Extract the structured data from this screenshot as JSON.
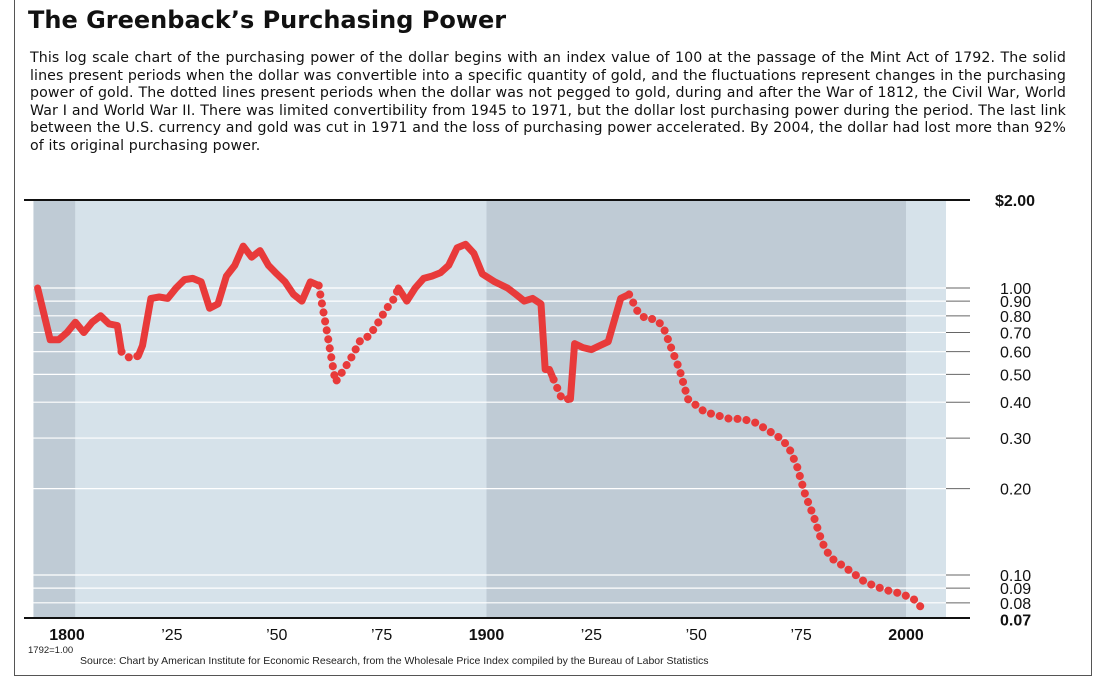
{
  "title": "The Greenback’s Purchasing Power",
  "description": "This log scale chart of the purchasing power of the dollar begins with an index value of 100 at the passage of the Mint Act of 1792. The solid lines present periods when the dollar was convertible into a specific quantity of gold, and the fluctuations represent changes in the purchasing power of gold. The dotted lines present periods when the dollar was not pegged to gold, during and after the War of 1812, the Civil War, World War I and World War II. There was limited convertibility from 1945 to 1971, but the dollar lost purchasing power during the period. The last link between the U.S. currency and gold was cut in 1971 and the loss of purchasing power accelerated. By 2004, the dollar had lost more than 92% of its original purchasing power.",
  "base_note": "1792=1.00",
  "source": "Source: Chart by American Institute for Economic Research, from the Wholesale Price Index compiled by the Bureau of Labor Statistics",
  "colors": {
    "line": "#e83a3a",
    "panel_light": "#d6e2ea",
    "panel_dark": "#bfcbd5",
    "gridline": "#ffffff"
  },
  "chart_data": {
    "type": "line",
    "y_scale": "log",
    "ylim": [
      0.07,
      2.0
    ],
    "xlim": [
      1792,
      2010
    ],
    "y_ticks": [
      {
        "value": 2.0,
        "label": "$2.00",
        "bold": true
      },
      {
        "value": 1.0,
        "label": "1.00"
      },
      {
        "value": 0.9,
        "label": "0.90"
      },
      {
        "value": 0.8,
        "label": "0.80"
      },
      {
        "value": 0.7,
        "label": "0.70"
      },
      {
        "value": 0.6,
        "label": "0.60"
      },
      {
        "value": 0.5,
        "label": "0.50"
      },
      {
        "value": 0.4,
        "label": "0.40"
      },
      {
        "value": 0.3,
        "label": "0.30"
      },
      {
        "value": 0.2,
        "label": "0.20"
      },
      {
        "value": 0.1,
        "label": "0.10"
      },
      {
        "value": 0.09,
        "label": "0.09"
      },
      {
        "value": 0.08,
        "label": "0.08"
      },
      {
        "value": 0.07,
        "label": "0.07",
        "bold": true
      }
    ],
    "x_ticks": [
      {
        "value": 1800,
        "label": "1800",
        "bold": true
      },
      {
        "value": 1825,
        "label": "’25"
      },
      {
        "value": 1850,
        "label": "’50"
      },
      {
        "value": 1875,
        "label": "’75"
      },
      {
        "value": 1900,
        "label": "1900",
        "bold": true
      },
      {
        "value": 1925,
        "label": "’25"
      },
      {
        "value": 1950,
        "label": "’50"
      },
      {
        "value": 1975,
        "label": "’75"
      },
      {
        "value": 2000,
        "label": "2000",
        "bold": true
      }
    ],
    "shaded_bands": [
      {
        "from": 1792,
        "to": 1802,
        "shade": "dark"
      },
      {
        "from": 1802,
        "to": 1900,
        "shade": "light"
      },
      {
        "from": 1900,
        "to": 2000,
        "shade": "dark"
      },
      {
        "from": 2000,
        "to": 2010,
        "shade": "light"
      }
    ],
    "segments": [
      {
        "style": "solid",
        "points": [
          [
            1793,
            1.0
          ],
          [
            1796,
            0.66
          ],
          [
            1798,
            0.66
          ],
          [
            1800,
            0.7
          ],
          [
            1802,
            0.76
          ],
          [
            1804,
            0.7
          ],
          [
            1806,
            0.76
          ],
          [
            1808,
            0.8
          ],
          [
            1810,
            0.75
          ],
          [
            1812,
            0.74
          ],
          [
            1813,
            0.6
          ]
        ]
      },
      {
        "style": "dotted",
        "points": [
          [
            1813,
            0.6
          ],
          [
            1815,
            0.57
          ],
          [
            1817,
            0.58
          ]
        ]
      },
      {
        "style": "solid",
        "points": [
          [
            1817,
            0.58
          ],
          [
            1818,
            0.63
          ],
          [
            1820,
            0.92
          ],
          [
            1822,
            0.93
          ],
          [
            1824,
            0.92
          ],
          [
            1826,
            1.0
          ],
          [
            1828,
            1.07
          ],
          [
            1830,
            1.08
          ],
          [
            1832,
            1.05
          ],
          [
            1834,
            0.85
          ],
          [
            1836,
            0.88
          ],
          [
            1838,
            1.1
          ],
          [
            1840,
            1.2
          ],
          [
            1842,
            1.4
          ],
          [
            1844,
            1.28
          ],
          [
            1846,
            1.35
          ],
          [
            1848,
            1.2
          ],
          [
            1850,
            1.12
          ],
          [
            1852,
            1.05
          ],
          [
            1854,
            0.95
          ],
          [
            1856,
            0.9
          ],
          [
            1858,
            1.05
          ],
          [
            1860,
            1.02
          ]
        ]
      },
      {
        "style": "dotted",
        "points": [
          [
            1860,
            1.02
          ],
          [
            1862,
            0.7
          ],
          [
            1864,
            0.47
          ],
          [
            1866,
            0.52
          ],
          [
            1868,
            0.58
          ],
          [
            1870,
            0.66
          ],
          [
            1872,
            0.68
          ],
          [
            1874,
            0.75
          ],
          [
            1876,
            0.84
          ],
          [
            1878,
            0.92
          ],
          [
            1879,
            1.0
          ]
        ]
      },
      {
        "style": "solid",
        "points": [
          [
            1879,
            1.0
          ],
          [
            1881,
            0.9
          ],
          [
            1883,
            1.0
          ],
          [
            1885,
            1.08
          ],
          [
            1887,
            1.1
          ],
          [
            1889,
            1.13
          ],
          [
            1891,
            1.2
          ],
          [
            1893,
            1.38
          ],
          [
            1895,
            1.42
          ],
          [
            1897,
            1.32
          ],
          [
            1899,
            1.12
          ],
          [
            1902,
            1.05
          ],
          [
            1905,
            1.0
          ],
          [
            1907,
            0.95
          ],
          [
            1909,
            0.9
          ],
          [
            1911,
            0.92
          ],
          [
            1913,
            0.88
          ],
          [
            1914,
            0.52
          ],
          [
            1915,
            0.52
          ],
          [
            1916,
            0.48
          ]
        ]
      },
      {
        "style": "dotted",
        "points": [
          [
            1916,
            0.48
          ],
          [
            1918,
            0.41
          ],
          [
            1920,
            0.41
          ]
        ]
      },
      {
        "style": "solid",
        "points": [
          [
            1920,
            0.41
          ],
          [
            1921,
            0.64
          ],
          [
            1923,
            0.62
          ],
          [
            1925,
            0.61
          ],
          [
            1927,
            0.63
          ],
          [
            1929,
            0.65
          ],
          [
            1932,
            0.92
          ],
          [
            1934,
            0.95
          ]
        ]
      },
      {
        "style": "dotted",
        "points": [
          [
            1934,
            0.95
          ],
          [
            1936,
            0.83
          ],
          [
            1938,
            0.78
          ],
          [
            1940,
            0.78
          ],
          [
            1942,
            0.74
          ],
          [
            1944,
            0.62
          ],
          [
            1946,
            0.52
          ],
          [
            1948,
            0.41
          ],
          [
            1950,
            0.39
          ],
          [
            1952,
            0.37
          ],
          [
            1955,
            0.36
          ],
          [
            1958,
            0.35
          ],
          [
            1961,
            0.35
          ],
          [
            1964,
            0.34
          ],
          [
            1967,
            0.32
          ],
          [
            1970,
            0.3
          ],
          [
            1972,
            0.28
          ],
          [
            1974,
            0.24
          ],
          [
            1976,
            0.19
          ],
          [
            1978,
            0.16
          ],
          [
            1980,
            0.13
          ],
          [
            1982,
            0.115
          ],
          [
            1984,
            0.11
          ],
          [
            1986,
            0.105
          ],
          [
            1988,
            0.1
          ],
          [
            1990,
            0.095
          ],
          [
            1993,
            0.091
          ],
          [
            1996,
            0.088
          ],
          [
            1999,
            0.086
          ],
          [
            2002,
            0.082
          ],
          [
            2004,
            0.076
          ]
        ]
      }
    ]
  }
}
